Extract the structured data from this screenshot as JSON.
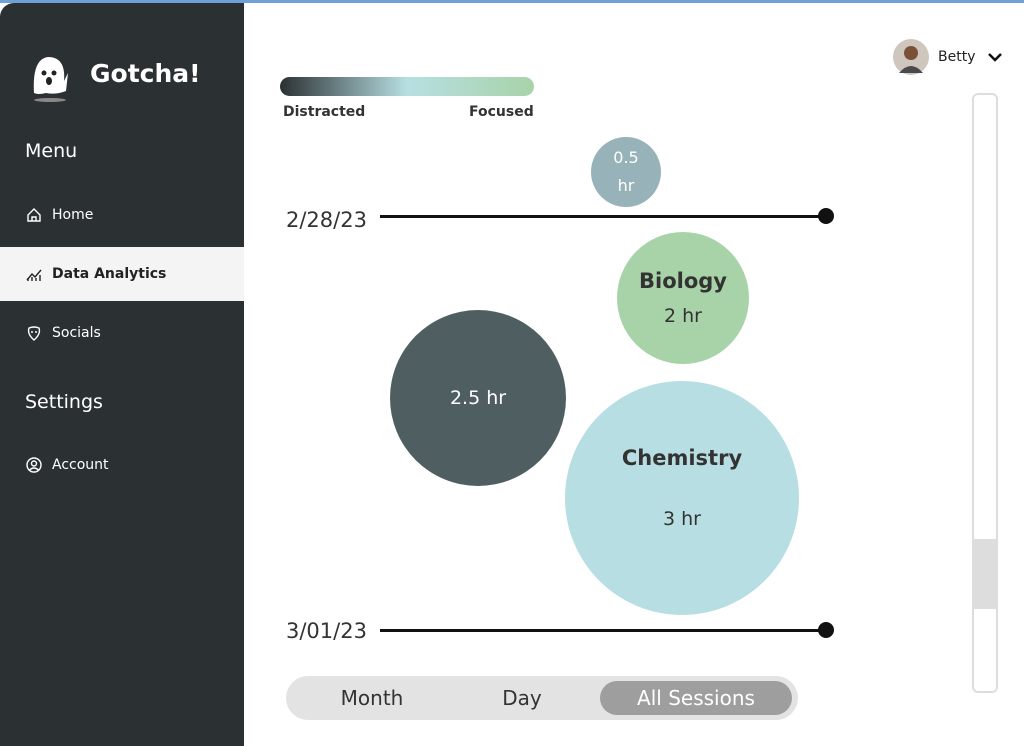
{
  "sidebar": {
    "app_name": "Gotcha!",
    "menu_heading": "Menu",
    "menu": [
      "Home",
      "Data Analytics",
      "Socials"
    ],
    "settings_heading": "Settings",
    "settings": [
      "Account"
    ]
  },
  "user": {
    "name": "Betty"
  },
  "legend": {
    "low": "Distracted",
    "high": "Focused"
  },
  "timeline": {
    "start": "2/28/23",
    "end": "3/01/23"
  },
  "sessions": [
    {
      "duration": "0.5 hr"
    },
    {
      "subject": "Biology",
      "duration": "2 hr"
    },
    {
      "duration": "2.5 hr"
    },
    {
      "subject": "Chemistry",
      "duration": "3 hr"
    }
  ],
  "tabs": [
    "Month",
    "Day",
    "All Sessions"
  ]
}
